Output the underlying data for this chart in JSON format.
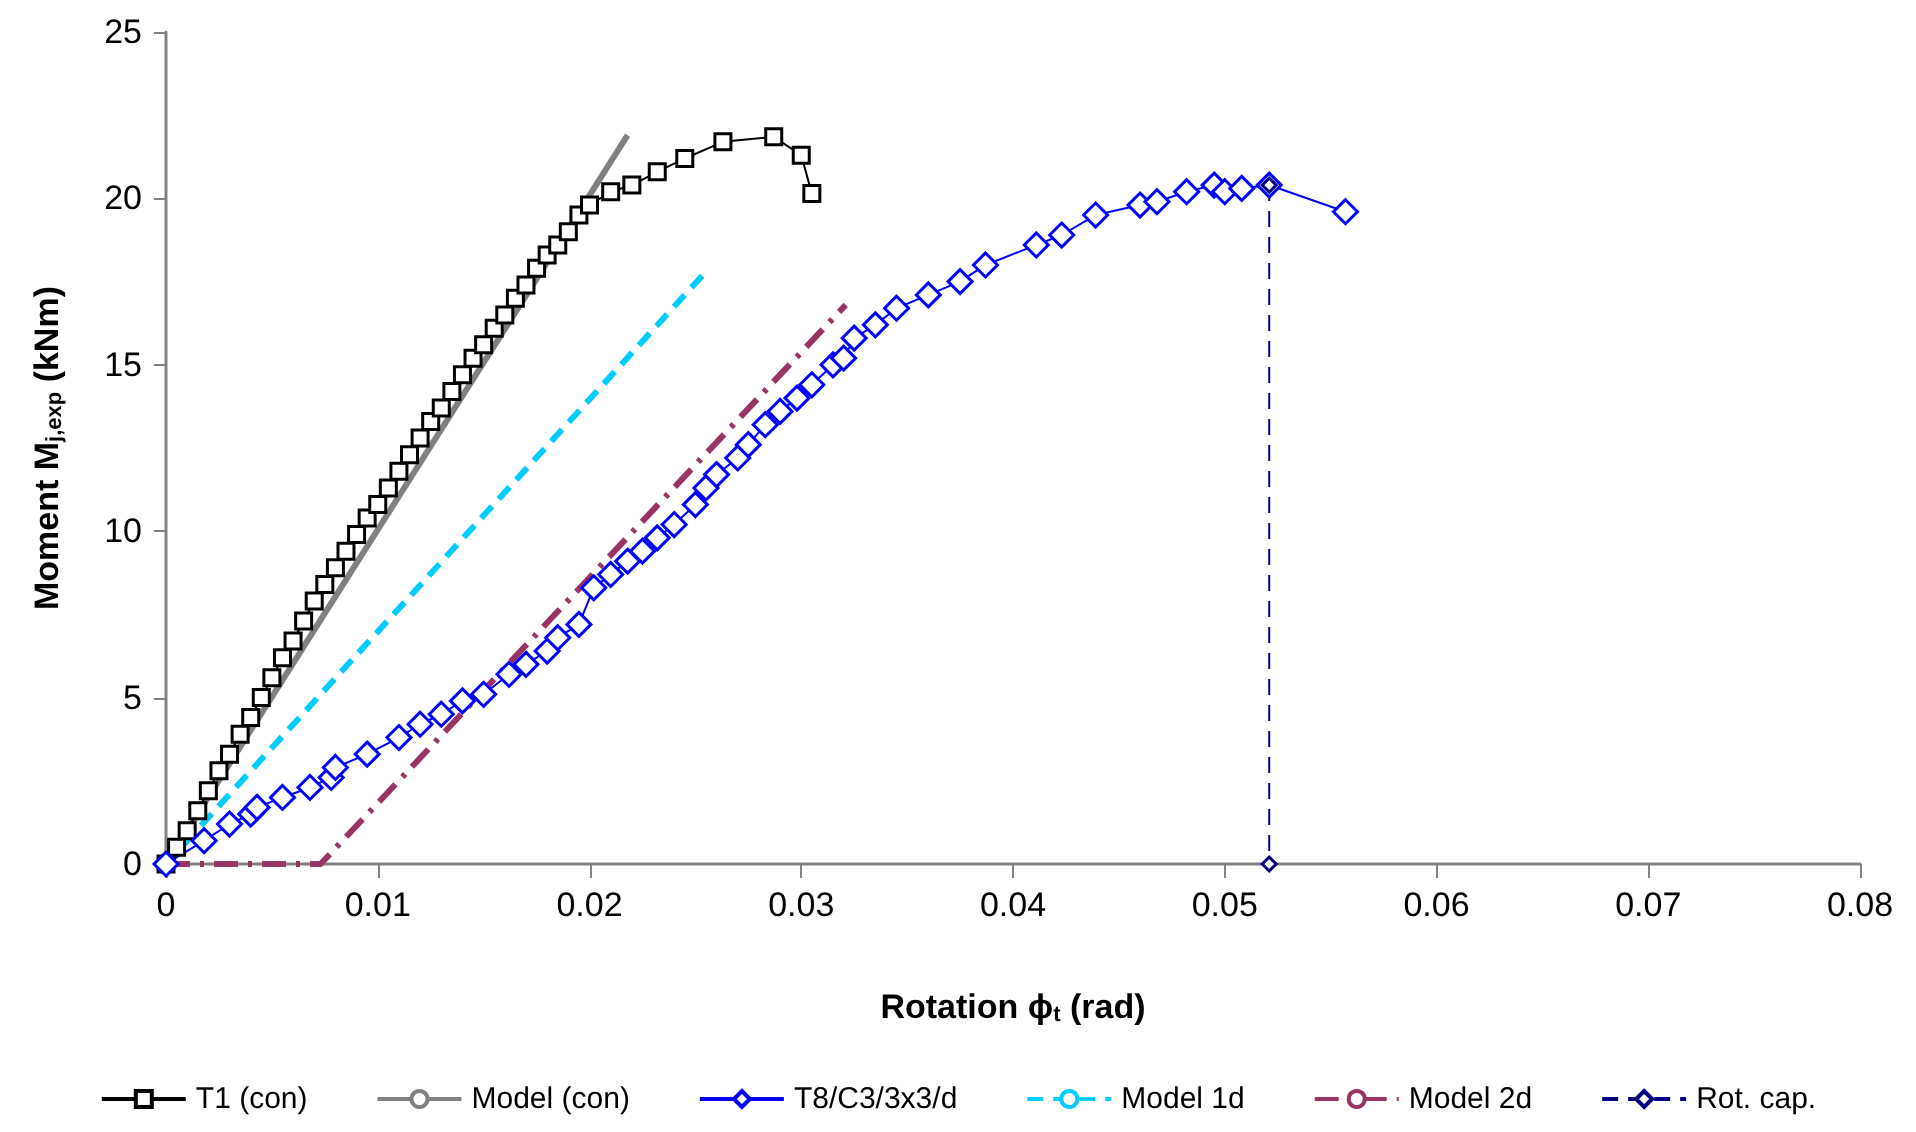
{
  "chart_data": {
    "type": "line",
    "xlabel": "Rotation ϕ$_{t}$ (rad)",
    "ylabel": "Moment M$_{j,exp}$ (kNm)",
    "xlim": [
      0,
      0.08
    ],
    "xticks": [
      0,
      0.01,
      0.02,
      0.03,
      0.04,
      0.05,
      0.06,
      0.07,
      0.08
    ],
    "ylim": [
      0,
      25
    ],
    "yticks": [
      0,
      5,
      10,
      15,
      20,
      25
    ],
    "grid": false,
    "legend": "bottom",
    "series": [
      {
        "name": "T1 (con)",
        "color": "#000000",
        "marker": "square",
        "line_style": "solid",
        "x": [
          0,
          0.0005,
          0.001,
          0.0015,
          0.002,
          0.0025,
          0.003,
          0.0035,
          0.004,
          0.0045,
          0.005,
          0.0055,
          0.006,
          0.0065,
          0.007,
          0.0075,
          0.008,
          0.0085,
          0.009,
          0.0095,
          0.01,
          0.0105,
          0.011,
          0.0115,
          0.012,
          0.0125,
          0.013,
          0.0135,
          0.014,
          0.0145,
          0.015,
          0.0155,
          0.016,
          0.0165,
          0.017,
          0.0175,
          0.018,
          0.0185,
          0.019,
          0.0195,
          0.02,
          0.021,
          0.022,
          0.0232,
          0.0245,
          0.0263,
          0.0287,
          0.03,
          0.0305
        ],
        "values": [
          0,
          0.5,
          1.0,
          1.6,
          2.2,
          2.8,
          3.3,
          3.9,
          4.4,
          5.0,
          5.6,
          6.2,
          6.7,
          7.3,
          7.9,
          8.4,
          8.9,
          9.4,
          9.9,
          10.4,
          10.8,
          11.3,
          11.8,
          12.3,
          12.8,
          13.3,
          13.7,
          14.2,
          14.7,
          15.2,
          15.6,
          16.1,
          16.5,
          17.0,
          17.4,
          17.9,
          18.3,
          18.6,
          19.0,
          19.5,
          19.8,
          20.2,
          20.4,
          20.8,
          21.2,
          21.7,
          21.85,
          21.3,
          20.15
        ]
      },
      {
        "name": "Model (con)",
        "color": "#808080",
        "marker": "none",
        "line_style": "solid",
        "x": [
          0,
          0.0218
        ],
        "values": [
          0,
          21.9
        ]
      },
      {
        "name": "T8/C3/3x3/d",
        "color": "#0000ff",
        "marker": "diamond",
        "line_style": "solid",
        "x": [
          0,
          0.0018,
          0.003,
          0.004,
          0.0043,
          0.0055,
          0.0068,
          0.0078,
          0.008,
          0.0095,
          0.011,
          0.012,
          0.013,
          0.014,
          0.015,
          0.0162,
          0.017,
          0.018,
          0.0185,
          0.0195,
          0.0202,
          0.021,
          0.0218,
          0.0225,
          0.0232,
          0.024,
          0.025,
          0.0255,
          0.026,
          0.027,
          0.0275,
          0.0283,
          0.029,
          0.0298,
          0.0305,
          0.0315,
          0.032,
          0.0325,
          0.0335,
          0.0345,
          0.036,
          0.0375,
          0.0387,
          0.0411,
          0.0423,
          0.0439,
          0.046,
          0.0468,
          0.0482,
          0.0495,
          0.05,
          0.0508,
          0.0521,
          0.0557
        ],
        "values": [
          0,
          0.7,
          1.2,
          1.5,
          1.7,
          2.0,
          2.3,
          2.6,
          2.9,
          3.3,
          3.8,
          4.2,
          4.5,
          4.9,
          5.1,
          5.7,
          6.0,
          6.4,
          6.8,
          7.2,
          8.3,
          8.7,
          9.1,
          9.4,
          9.8,
          10.2,
          10.8,
          11.3,
          11.7,
          12.2,
          12.6,
          13.2,
          13.6,
          14.0,
          14.4,
          15.0,
          15.2,
          15.8,
          16.2,
          16.7,
          17.1,
          17.5,
          18.0,
          18.6,
          18.9,
          19.5,
          19.8,
          19.9,
          20.2,
          20.4,
          20.2,
          20.3,
          20.4,
          19.6
        ]
      },
      {
        "name": "Model 1d",
        "color": "#00ccff",
        "marker": "none",
        "line_style": "dashed",
        "x": [
          0,
          0.0255
        ],
        "values": [
          0,
          17.8
        ]
      },
      {
        "name": "Model 2d",
        "color": "#993366",
        "marker": "none",
        "line_style": "dashdot",
        "x": [
          0,
          0.0073,
          0.0321
        ],
        "values": [
          0,
          0,
          16.8
        ]
      },
      {
        "name": "Rot. cap.",
        "color": "#000080",
        "marker": "diamond",
        "line_style": "dashed",
        "x": [
          0.0521,
          0.0521
        ],
        "values": [
          20.4,
          0
        ]
      }
    ]
  }
}
